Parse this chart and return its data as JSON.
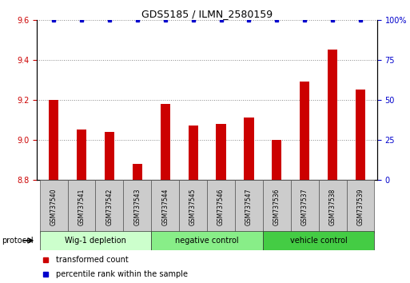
{
  "title": "GDS5185 / ILMN_2580159",
  "samples": [
    "GSM737540",
    "GSM737541",
    "GSM737542",
    "GSM737543",
    "GSM737544",
    "GSM737545",
    "GSM737546",
    "GSM737547",
    "GSM737536",
    "GSM737537",
    "GSM737538",
    "GSM737539"
  ],
  "red_values": [
    9.2,
    9.05,
    9.04,
    8.88,
    9.18,
    9.07,
    9.08,
    9.11,
    9.0,
    9.29,
    9.45,
    9.25
  ],
  "blue_values": [
    100,
    100,
    100,
    100,
    100,
    100,
    100,
    100,
    100,
    100,
    100,
    100
  ],
  "ylim_left": [
    8.8,
    9.6
  ],
  "ylim_right": [
    0,
    100
  ],
  "yticks_left": [
    8.8,
    9.0,
    9.2,
    9.4,
    9.6
  ],
  "yticks_right": [
    0,
    25,
    50,
    75,
    100
  ],
  "groups": [
    {
      "label": "Wig-1 depletion",
      "start": 0,
      "end": 4,
      "color": "#ccffcc"
    },
    {
      "label": "negative control",
      "start": 4,
      "end": 8,
      "color": "#88ee88"
    },
    {
      "label": "vehicle control",
      "start": 8,
      "end": 12,
      "color": "#44cc44"
    }
  ],
  "bar_color": "#cc0000",
  "dot_color": "#0000cc",
  "baseline": 8.8,
  "grid_color": "#888888",
  "tick_label_color_left": "#cc0000",
  "tick_label_color_right": "#0000cc",
  "legend_red_label": "transformed count",
  "legend_blue_label": "percentile rank within the sample",
  "protocol_label": "protocol",
  "bar_width": 0.35
}
